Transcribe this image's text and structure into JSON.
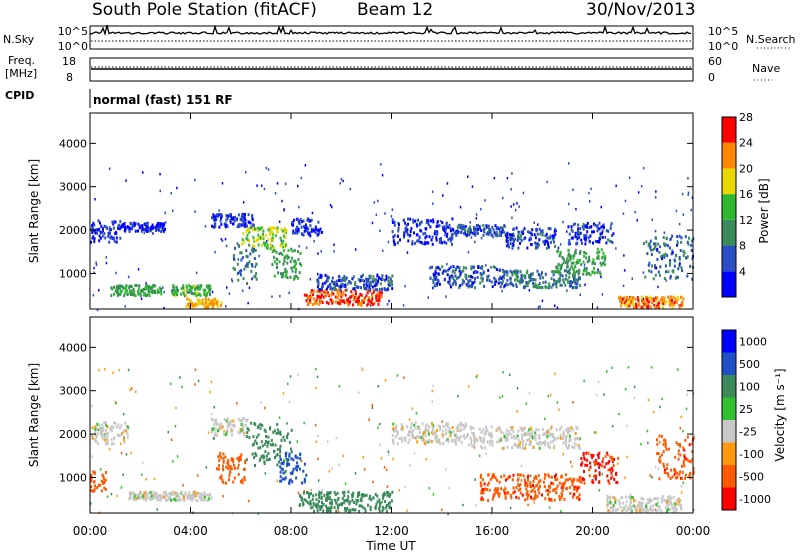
{
  "header": {
    "station": "South Pole Station (fitACF)",
    "beam": "Beam 12",
    "date": "30/Nov/2013"
  },
  "top_panels": {
    "nsky_label": "N.Sky",
    "nsky_ticks": [
      "10^5",
      "10^0"
    ],
    "nsearch_label": "N.Search",
    "nsearch_ticks": [
      "10^5",
      "10^0"
    ],
    "freq_label_1": "Freq.",
    "freq_label_2": "[MHz]",
    "freq_ticks": [
      "18",
      "8"
    ],
    "nave_label": "Nave",
    "nave_ticks": [
      "60",
      "0"
    ],
    "cpid_label": "CPID",
    "cpid_value": "normal (fast) 151 RF"
  },
  "chart_data": [
    {
      "type": "heatmap",
      "title": "",
      "ylabel": "Slant Range [km]",
      "ylim": [
        180,
        4700
      ],
      "yticks": [
        "4000",
        "3000",
        "2000",
        "1000"
      ],
      "xlim_hours": [
        0,
        24
      ],
      "colorbar_label": "Power [dB]",
      "colorbar_ticks": [
        "28",
        "24",
        "20",
        "16",
        "12",
        "8",
        "4"
      ],
      "colorbar_colors": [
        "#0000ff",
        "#2a4fc4",
        "#3a8a5a",
        "#2fb82f",
        "#e8d800",
        "#ff8800",
        "#ff0000"
      ],
      "bands": [
        {
          "t": [
            0.0,
            1.2
          ],
          "r": [
            1750,
            2250
          ],
          "v": 6
        },
        {
          "t": [
            1.2,
            3.0
          ],
          "r": [
            2000,
            2200
          ],
          "v": 5
        },
        {
          "t": [
            0.8,
            2.8
          ],
          "r": [
            520,
            760
          ],
          "v": 14
        },
        {
          "t": [
            3.2,
            4.8
          ],
          "r": [
            520,
            760
          ],
          "v": 15
        },
        {
          "t": [
            3.8,
            5.2
          ],
          "r": [
            250,
            450
          ],
          "v": 22
        },
        {
          "t": [
            4.8,
            6.5
          ],
          "r": [
            2100,
            2400
          ],
          "v": 6
        },
        {
          "t": [
            5.6,
            6.6
          ],
          "r": [
            800,
            1700
          ],
          "v": 10
        },
        {
          "t": [
            6.0,
            7.8
          ],
          "r": [
            1600,
            2100
          ],
          "v": 18
        },
        {
          "t": [
            7.2,
            8.4
          ],
          "r": [
            900,
            1600
          ],
          "v": 14
        },
        {
          "t": [
            8.0,
            9.2
          ],
          "r": [
            1900,
            2300
          ],
          "v": 6
        },
        {
          "t": [
            8.5,
            11.6
          ],
          "r": [
            300,
            650
          ],
          "v": 26
        },
        {
          "t": [
            9.0,
            12.0
          ],
          "r": [
            650,
            1000
          ],
          "v": 8
        },
        {
          "t": [
            12.0,
            14.5
          ],
          "r": [
            1700,
            2300
          ],
          "v": 6
        },
        {
          "t": [
            14.5,
            16.5
          ],
          "r": [
            1900,
            2150
          ],
          "v": 7
        },
        {
          "t": [
            16.5,
            18.5
          ],
          "r": [
            1600,
            2100
          ],
          "v": 7
        },
        {
          "t": [
            13.5,
            16.5
          ],
          "r": [
            700,
            1200
          ],
          "v": 8
        },
        {
          "t": [
            16.5,
            19.5
          ],
          "r": [
            700,
            1100
          ],
          "v": 11
        },
        {
          "t": [
            18.5,
            20.5
          ],
          "r": [
            1000,
            1600
          ],
          "v": 14
        },
        {
          "t": [
            19.0,
            20.8
          ],
          "r": [
            1700,
            2200
          ],
          "v": 7
        },
        {
          "t": [
            21.0,
            23.6
          ],
          "r": [
            250,
            500
          ],
          "v": 24
        },
        {
          "t": [
            22.0,
            24.0
          ],
          "r": [
            900,
            1900
          ],
          "v": 9
        }
      ]
    },
    {
      "type": "heatmap",
      "title": "",
      "ylabel": "Slant Range [km]",
      "ylim": [
        180,
        4700
      ],
      "yticks": [
        "4000",
        "3000",
        "2000",
        "1000"
      ],
      "xlim_hours": [
        0,
        24
      ],
      "xticks": [
        "00:00",
        "04:00",
        "08:00",
        "12:00",
        "16:00",
        "20:00",
        "00:00"
      ],
      "xlabel": "Time UT",
      "colorbar_label": "Velocity [m s⁻¹]",
      "colorbar_ticks": [
        "1000",
        "500",
        "100",
        "25",
        "-25",
        "-100",
        "-500",
        "-1000"
      ],
      "colorbar_colors": [
        "#ff0000",
        "#ff5a00",
        "#ff9a10",
        "#c8c8c8",
        "#30c030",
        "#3a8a5a",
        "#2050c8",
        "#0000ff"
      ],
      "bands": [
        {
          "t": [
            0.0,
            1.5
          ],
          "r": [
            1800,
            2300
          ],
          "v": 0
        },
        {
          "t": [
            0.0,
            0.6
          ],
          "r": [
            700,
            1200
          ],
          "v": -200
        },
        {
          "t": [
            1.5,
            4.8
          ],
          "r": [
            500,
            700
          ],
          "v": 0
        },
        {
          "t": [
            4.8,
            6.2
          ],
          "r": [
            2000,
            2400
          ],
          "v": 0
        },
        {
          "t": [
            5.0,
            6.2
          ],
          "r": [
            900,
            1600
          ],
          "v": -200
        },
        {
          "t": [
            6.2,
            8.0
          ],
          "r": [
            1300,
            2300
          ],
          "v": 150
        },
        {
          "t": [
            7.5,
            8.6
          ],
          "r": [
            900,
            1600
          ],
          "v": 700
        },
        {
          "t": [
            8.3,
            12.0
          ],
          "r": [
            250,
            700
          ],
          "v": 150
        },
        {
          "t": [
            12.0,
            15.0
          ],
          "r": [
            1800,
            2300
          ],
          "v": 0
        },
        {
          "t": [
            15.0,
            19.5
          ],
          "r": [
            1700,
            2200
          ],
          "v": 0
        },
        {
          "t": [
            15.5,
            19.5
          ],
          "r": [
            500,
            1100
          ],
          "v": -400
        },
        {
          "t": [
            19.5,
            21.0
          ],
          "r": [
            900,
            1600
          ],
          "v": -600
        },
        {
          "t": [
            20.5,
            23.5
          ],
          "r": [
            250,
            600
          ],
          "v": 0
        },
        {
          "t": [
            22.5,
            24.0
          ],
          "r": [
            1000,
            2000
          ],
          "v": -400
        }
      ]
    }
  ]
}
